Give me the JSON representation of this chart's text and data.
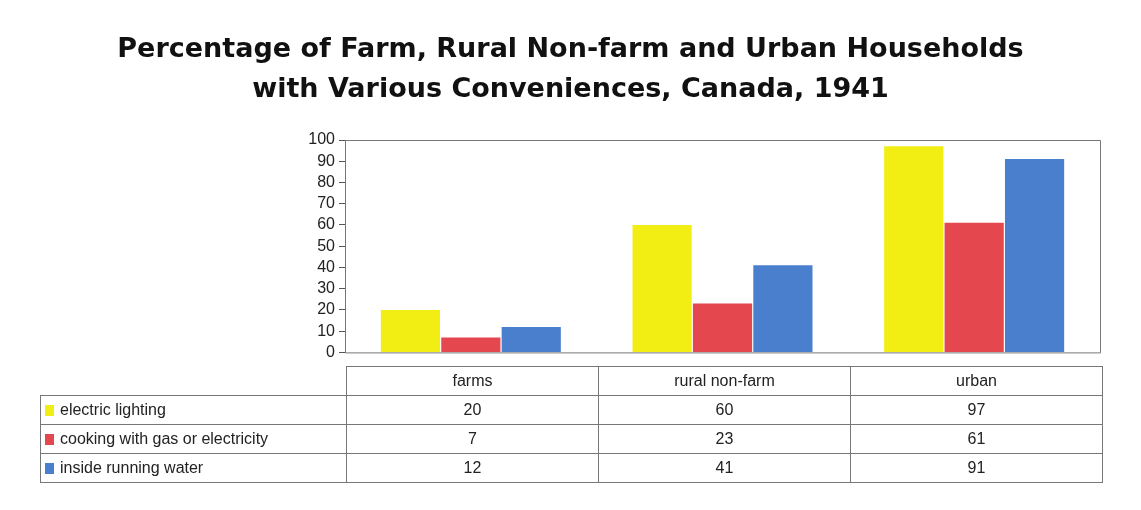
{
  "chart_data": {
    "type": "bar",
    "title": "Percentage of Farm, Rural Non-farm and Urban Households\nwith Various Conveniences, Canada, 1941",
    "categories": [
      "farms",
      "rural non-farm",
      "urban"
    ],
    "series": [
      {
        "name": "electric lighting",
        "color": "#f2ee14",
        "values": [
          20,
          60,
          97
        ]
      },
      {
        "name": "cooking with gas or electricity",
        "color": "#e5474e",
        "values": [
          7,
          23,
          61
        ]
      },
      {
        "name": "inside running water",
        "color": "#4a7fcd",
        "values": [
          12,
          41,
          91
        ]
      }
    ],
    "ylim": [
      0,
      100
    ],
    "yticks": [
      0,
      10,
      20,
      30,
      40,
      50,
      60,
      70,
      80,
      90,
      100
    ],
    "grid": false,
    "legend": "bottom",
    "data_labels": true
  }
}
